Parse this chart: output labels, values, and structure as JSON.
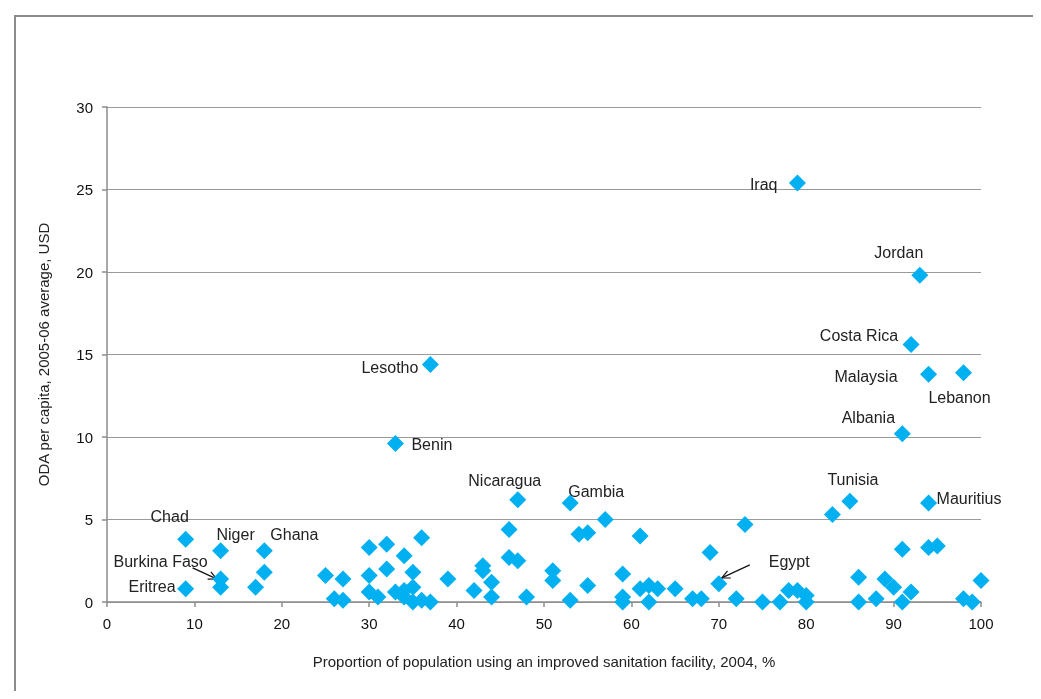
{
  "chart_data": {
    "type": "scatter",
    "xlabel": "Proportion of population using an improved sanitation facility, 2004, %",
    "ylabel": "ODA per capita, 2005-06 average, USD",
    "x": [
      9,
      9,
      13,
      13,
      13,
      17,
      18,
      18,
      25,
      26,
      27,
      27,
      30,
      30,
      30,
      31,
      32,
      32,
      33,
      33,
      34,
      34,
      34,
      35,
      35,
      35,
      36,
      36,
      37,
      37,
      39,
      42,
      43,
      43,
      44,
      44,
      46,
      46,
      47,
      47,
      48,
      51,
      51,
      53,
      53,
      54,
      55,
      55,
      57,
      59,
      59,
      59,
      61,
      61,
      62,
      62,
      63,
      65,
      67,
      68,
      69,
      70,
      72,
      73,
      75,
      77,
      78,
      79,
      79,
      80,
      80,
      83,
      85,
      86,
      86,
      88,
      89,
      90,
      91,
      91,
      91,
      92,
      92,
      93,
      94,
      94,
      94,
      95,
      98,
      98,
      99,
      100
    ],
    "values": [
      3.8,
      0.8,
      3.1,
      1.4,
      0.9,
      0.9,
      3.1,
      1.8,
      1.6,
      0.2,
      1.4,
      0.1,
      3.3,
      1.6,
      0.6,
      0.3,
      3.5,
      2.0,
      9.6,
      0.6,
      2.8,
      0.7,
      0.3,
      1.8,
      0.9,
      0,
      3.9,
      0.1,
      14.4,
      0,
      1.4,
      0.7,
      2.2,
      1.9,
      1.2,
      0.3,
      4.4,
      2.7,
      6.2,
      2.5,
      0.3,
      1.9,
      1.3,
      6.0,
      0.1,
      4.1,
      4.2,
      1.0,
      5.0,
      1.7,
      0.3,
      0,
      4.0,
      0.8,
      1.0,
      0,
      0.8,
      0.8,
      0.2,
      0.2,
      3.0,
      1.1,
      0.2,
      4.7,
      0,
      0,
      0.7,
      25.4,
      0.7,
      0.4,
      0,
      5.3,
      6.1,
      1.5,
      0,
      0.2,
      1.4,
      0.9,
      10.2,
      3.2,
      0,
      15.6,
      0.6,
      19.8,
      13.8,
      6.0,
      3.3,
      3.4,
      13.9,
      0.2,
      0,
      1.3
    ],
    "color": "#00b0f0",
    "marker": "diamond",
    "xlim": [
      0,
      100
    ],
    "xticks": [
      0,
      10,
      20,
      30,
      40,
      50,
      60,
      70,
      80,
      90,
      100
    ],
    "ylim": [
      0,
      30
    ],
    "yticks": [
      0,
      5,
      10,
      15,
      20,
      25,
      30
    ],
    "grid": "y",
    "annotations": [
      {
        "text": "Iraq",
        "x": 79,
        "y": 25.4
      },
      {
        "text": "Jordan",
        "x": 93,
        "y": 19.8
      },
      {
        "text": "Costa Rica",
        "x": 92,
        "y": 15.6
      },
      {
        "text": "Malaysia",
        "x": 94,
        "y": 13.8
      },
      {
        "text": "Lebanon",
        "x": 98,
        "y": 13.9
      },
      {
        "text": "Albania",
        "x": 91,
        "y": 10.2
      },
      {
        "text": "Lesotho",
        "x": 37,
        "y": 14.4
      },
      {
        "text": "Benin",
        "x": 33,
        "y": 9.6
      },
      {
        "text": "Nicaragua",
        "x": 47,
        "y": 6.2
      },
      {
        "text": "Gambia",
        "x": 53,
        "y": 6.0
      },
      {
        "text": "Tunisia",
        "x": 85,
        "y": 6.1
      },
      {
        "text": "Mauritius",
        "x": 94,
        "y": 6.0
      },
      {
        "text": "Chad",
        "x": 9,
        "y": 3.8
      },
      {
        "text": "Niger",
        "x": 13,
        "y": 3.1
      },
      {
        "text": "Ghana",
        "x": 18,
        "y": 3.1
      },
      {
        "text": "Burkina Faso",
        "x": 13,
        "y": 1.4
      },
      {
        "text": "Eritrea",
        "x": 9,
        "y": 0.8
      },
      {
        "text": "Egypt",
        "x": 70,
        "y": 1.1
      }
    ]
  }
}
